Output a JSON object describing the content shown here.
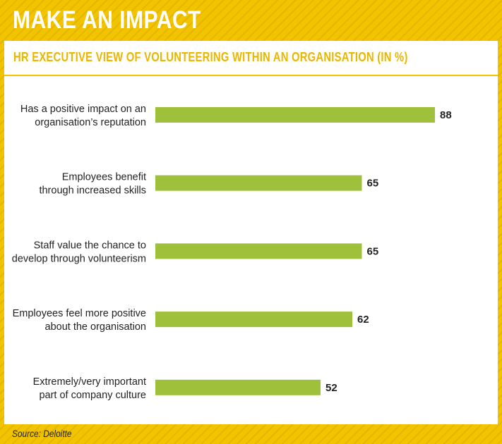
{
  "header": {
    "title": "MAKE AN IMPACT",
    "subtitle": "HR EXECUTIVE VIEW OF VOLUNTEERING WITHIN AN ORGANISATION (IN %)"
  },
  "footer": {
    "source": "Source: Deloitte"
  },
  "colors": {
    "accent_yellow": "#f2c400",
    "bar_green": "#9fc03a",
    "subtitle_yellow": "#eab600"
  },
  "chart_data": {
    "type": "bar",
    "orientation": "horizontal",
    "title": "HR EXECUTIVE VIEW OF VOLUNTEERING WITHIN AN ORGANISATION (IN %)",
    "categories": [
      [
        "Has a positive impact on an",
        "organisation’s reputation"
      ],
      [
        "Employees benefit",
        "through increased skills"
      ],
      [
        "Staff value the chance to",
        "develop through volunteerism"
      ],
      [
        "Employees feel more positive",
        "about the organisation"
      ],
      [
        "Extremely/very important",
        "part of company culture"
      ]
    ],
    "values": [
      88,
      65,
      65,
      62,
      52
    ],
    "data_labels": [
      "88",
      "65",
      "65",
      "62",
      "52"
    ],
    "xlim": [
      0,
      100
    ],
    "grid": false,
    "legend": "none"
  }
}
